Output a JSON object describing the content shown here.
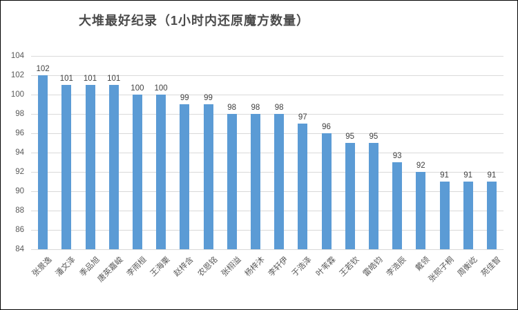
{
  "title": "大堆最好纪录（1小时内还原魔方数量）",
  "chart_data": {
    "type": "bar",
    "title": "大堆最好纪录（1小时内还原魔方数量）",
    "categories": [
      "张景逸",
      "潘文泽",
      "季品旭",
      "唐英嘉峻",
      "李雨桓",
      "王海栗",
      "赵梓含",
      "农恩铭",
      "张栩溢",
      "杨梓沐",
      "李轩伊",
      "于浩泽",
      "叶苇霖",
      "王若钦",
      "雷皓钧",
      "李浩辰",
      "戴领",
      "张熙子桐",
      "周衡屹",
      "苑佳智"
    ],
    "values": [
      102,
      101,
      101,
      101,
      100,
      100,
      99,
      99,
      98,
      98,
      98,
      97,
      96,
      95,
      95,
      93,
      92,
      91,
      91,
      91
    ],
    "data_labels": true,
    "xlabel": "",
    "ylabel": "",
    "ylim": [
      84,
      104
    ],
    "yticks": [
      84,
      86,
      88,
      90,
      92,
      94,
      96,
      98,
      100,
      102,
      104
    ],
    "grid": true,
    "legend_position": "none",
    "bar_color": "#5b9bd5",
    "gridline_color": "#d9d9d9",
    "label_color": "#404040",
    "tick_color": "#595959"
  }
}
